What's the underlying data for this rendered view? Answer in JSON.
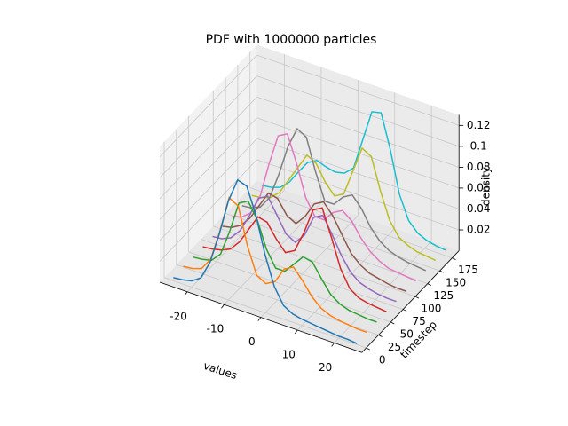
{
  "chart_data": {
    "type": "line3d",
    "title": "PDF with 1000000 particles",
    "xlabel": "values",
    "ylabel": "timestep",
    "zlabel": "density",
    "x": [
      -25,
      -22.5,
      -20,
      -17.5,
      -15,
      -12.5,
      -10,
      -7.5,
      -5,
      -2.5,
      0,
      2.5,
      5,
      7.5,
      10,
      12.5,
      15,
      17.5,
      20,
      22.5,
      25
    ],
    "xlim": [
      -27.5,
      27.5
    ],
    "ylim": [
      -9,
      189
    ],
    "zlim": [
      0,
      0.13
    ],
    "xticks": [
      -20,
      -10,
      0,
      10,
      20
    ],
    "yticks": [
      0,
      25,
      50,
      75,
      100,
      125,
      150,
      175
    ],
    "zticks": [
      0.02,
      0.04,
      0.06,
      0.08,
      0.1,
      0.12
    ],
    "grid": true,
    "series": [
      {
        "timestep": 0,
        "color": "#1f77b4",
        "values": [
          0.003,
          0.004,
          0.006,
          0.012,
          0.03,
          0.06,
          0.095,
          0.118,
          0.115,
          0.09,
          0.055,
          0.028,
          0.013,
          0.008,
          0.006,
          0.005,
          0.004,
          0.003,
          0.002,
          0.002,
          0.001
        ]
      },
      {
        "timestep": 20,
        "color": "#ff7f0e",
        "values": [
          0.004,
          0.005,
          0.008,
          0.02,
          0.05,
          0.085,
          0.08,
          0.045,
          0.02,
          0.015,
          0.02,
          0.035,
          0.04,
          0.03,
          0.018,
          0.01,
          0.006,
          0.004,
          0.003,
          0.002,
          0.002
        ]
      },
      {
        "timestep": 40,
        "color": "#2ca02c",
        "values": [
          0.003,
          0.004,
          0.006,
          0.015,
          0.04,
          0.07,
          0.075,
          0.06,
          0.035,
          0.02,
          0.02,
          0.03,
          0.04,
          0.038,
          0.025,
          0.013,
          0.007,
          0.004,
          0.003,
          0.002,
          0.002
        ]
      },
      {
        "timestep": 60,
        "color": "#d62728",
        "values": [
          0.003,
          0.004,
          0.006,
          0.01,
          0.02,
          0.035,
          0.05,
          0.048,
          0.035,
          0.025,
          0.03,
          0.05,
          0.075,
          0.08,
          0.055,
          0.028,
          0.012,
          0.006,
          0.004,
          0.003,
          0.002
        ]
      },
      {
        "timestep": 80,
        "color": "#9467bd",
        "values": [
          0.003,
          0.004,
          0.008,
          0.018,
          0.035,
          0.055,
          0.06,
          0.045,
          0.03,
          0.025,
          0.035,
          0.055,
          0.06,
          0.045,
          0.028,
          0.015,
          0.008,
          0.005,
          0.003,
          0.002,
          0.002
        ]
      },
      {
        "timestep": 100,
        "color": "#8c564b",
        "values": [
          0.003,
          0.005,
          0.01,
          0.02,
          0.035,
          0.05,
          0.048,
          0.035,
          0.03,
          0.04,
          0.055,
          0.06,
          0.05,
          0.035,
          0.02,
          0.012,
          0.007,
          0.005,
          0.003,
          0.002,
          0.002
        ]
      },
      {
        "timestep": 120,
        "color": "#e377c2",
        "values": [
          0.003,
          0.005,
          0.012,
          0.03,
          0.065,
          0.095,
          0.1,
          0.075,
          0.045,
          0.03,
          0.03,
          0.04,
          0.045,
          0.038,
          0.025,
          0.015,
          0.009,
          0.005,
          0.004,
          0.003,
          0.002
        ]
      },
      {
        "timestep": 140,
        "color": "#7f7f7f",
        "values": [
          0.003,
          0.004,
          0.008,
          0.02,
          0.045,
          0.075,
          0.095,
          0.09,
          0.06,
          0.035,
          0.035,
          0.045,
          0.05,
          0.04,
          0.025,
          0.015,
          0.009,
          0.006,
          0.004,
          0.003,
          0.002
        ]
      },
      {
        "timestep": 160,
        "color": "#bcbd22",
        "values": [
          0.003,
          0.004,
          0.007,
          0.015,
          0.03,
          0.045,
          0.06,
          0.055,
          0.04,
          0.03,
          0.035,
          0.06,
          0.085,
          0.08,
          0.05,
          0.025,
          0.012,
          0.007,
          0.004,
          0.003,
          0.002
        ]
      },
      {
        "timestep": 180,
        "color": "#17becf",
        "values": [
          0.003,
          0.004,
          0.007,
          0.015,
          0.028,
          0.04,
          0.045,
          0.042,
          0.04,
          0.042,
          0.05,
          0.08,
          0.11,
          0.112,
          0.08,
          0.04,
          0.018,
          0.009,
          0.005,
          0.003,
          0.002
        ]
      }
    ]
  }
}
